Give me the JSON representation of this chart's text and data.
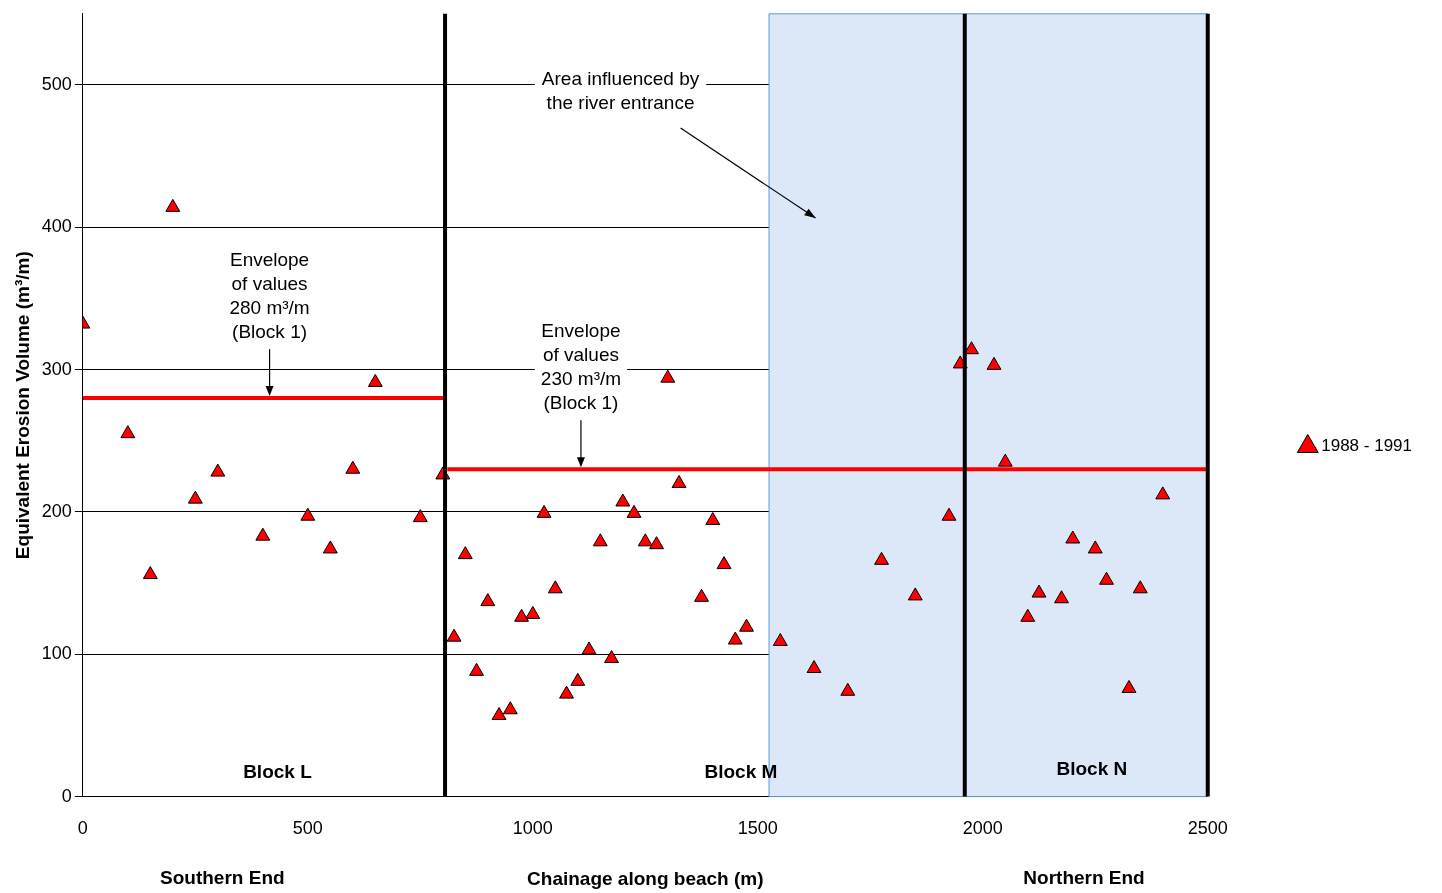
{
  "chart_data": {
    "type": "scatter",
    "xlabel": "Chainage along beach (m)",
    "ylabel": "Equivalent Erosion Volume (m³/m)",
    "xlim": [
      0,
      2500
    ],
    "xticks": [
      0,
      500,
      1000,
      1500,
      2000,
      2500
    ],
    "ylim": [
      0,
      550
    ],
    "yticks": [
      0,
      100,
      200,
      300,
      400,
      500
    ],
    "grid": "y",
    "legend": "right",
    "marker": "triangle",
    "series": [
      {
        "name": "1988 - 1991",
        "color": "#ff0000",
        "x": [
          0,
          100,
          150,
          200,
          250,
          300,
          400,
          500,
          550,
          600,
          650,
          750,
          800,
          825,
          850,
          875,
          900,
          925,
          950,
          975,
          1000,
          1025,
          1050,
          1075,
          1100,
          1125,
          1150,
          1175,
          1200,
          1225,
          1250,
          1275,
          1300,
          1325,
          1375,
          1400,
          1425,
          1450,
          1475,
          1550,
          1625,
          1700,
          1775,
          1850,
          1925,
          1950,
          1975,
          2025,
          2050,
          2100,
          2125,
          2175,
          2200,
          2250,
          2275,
          2325,
          2350,
          2400
        ],
        "values": [
          332,
          255,
          156,
          414,
          209,
          228,
          183,
          197,
          174,
          230,
          291,
          196,
          226,
          112,
          170,
          88,
          137,
          57,
          61,
          126,
          128,
          199,
          146,
          72,
          81,
          103,
          179,
          97,
          207,
          199,
          179,
          177,
          294,
          220,
          140,
          194,
          163,
          110,
          119,
          109,
          90,
          74,
          166,
          141,
          197,
          304,
          314,
          303,
          235,
          126,
          143,
          139,
          181,
          174,
          152,
          76,
          146,
          212
        ]
      },
      {
        "type": "line",
        "marker": "none",
        "color": "#ff0000",
        "x": [
          0,
          805
        ],
        "values": [
          280,
          280
        ]
      },
      {
        "type": "line",
        "marker": "none",
        "color": "#ff0000",
        "x": [
          810,
          2500
        ],
        "values": [
          230,
          230
        ]
      }
    ],
    "ref_lines": [
      {
        "axis": "x",
        "value": 805,
        "color": "#000000"
      },
      {
        "axis": "x",
        "value": 1960,
        "color": "#000000"
      },
      {
        "axis": "x",
        "value": 2500,
        "color": "#000000"
      }
    ],
    "bands": [
      {
        "axis": "x",
        "from": 1525,
        "to": 2500,
        "color": "#dce8f8"
      }
    ],
    "annotations": [
      {
        "text": "Envelope\nof values\n280 m³/m\n(Block 1)",
        "x": 415,
        "y": 280
      },
      {
        "text": "Envelope\nof values\n230 m³/m\n(Block 1)",
        "x": 1107,
        "y": 230
      },
      "Area influenced by\nthe river entrance",
      "Block L",
      "Block M",
      "Block N",
      "Southern End",
      "Northern End"
    ]
  }
}
